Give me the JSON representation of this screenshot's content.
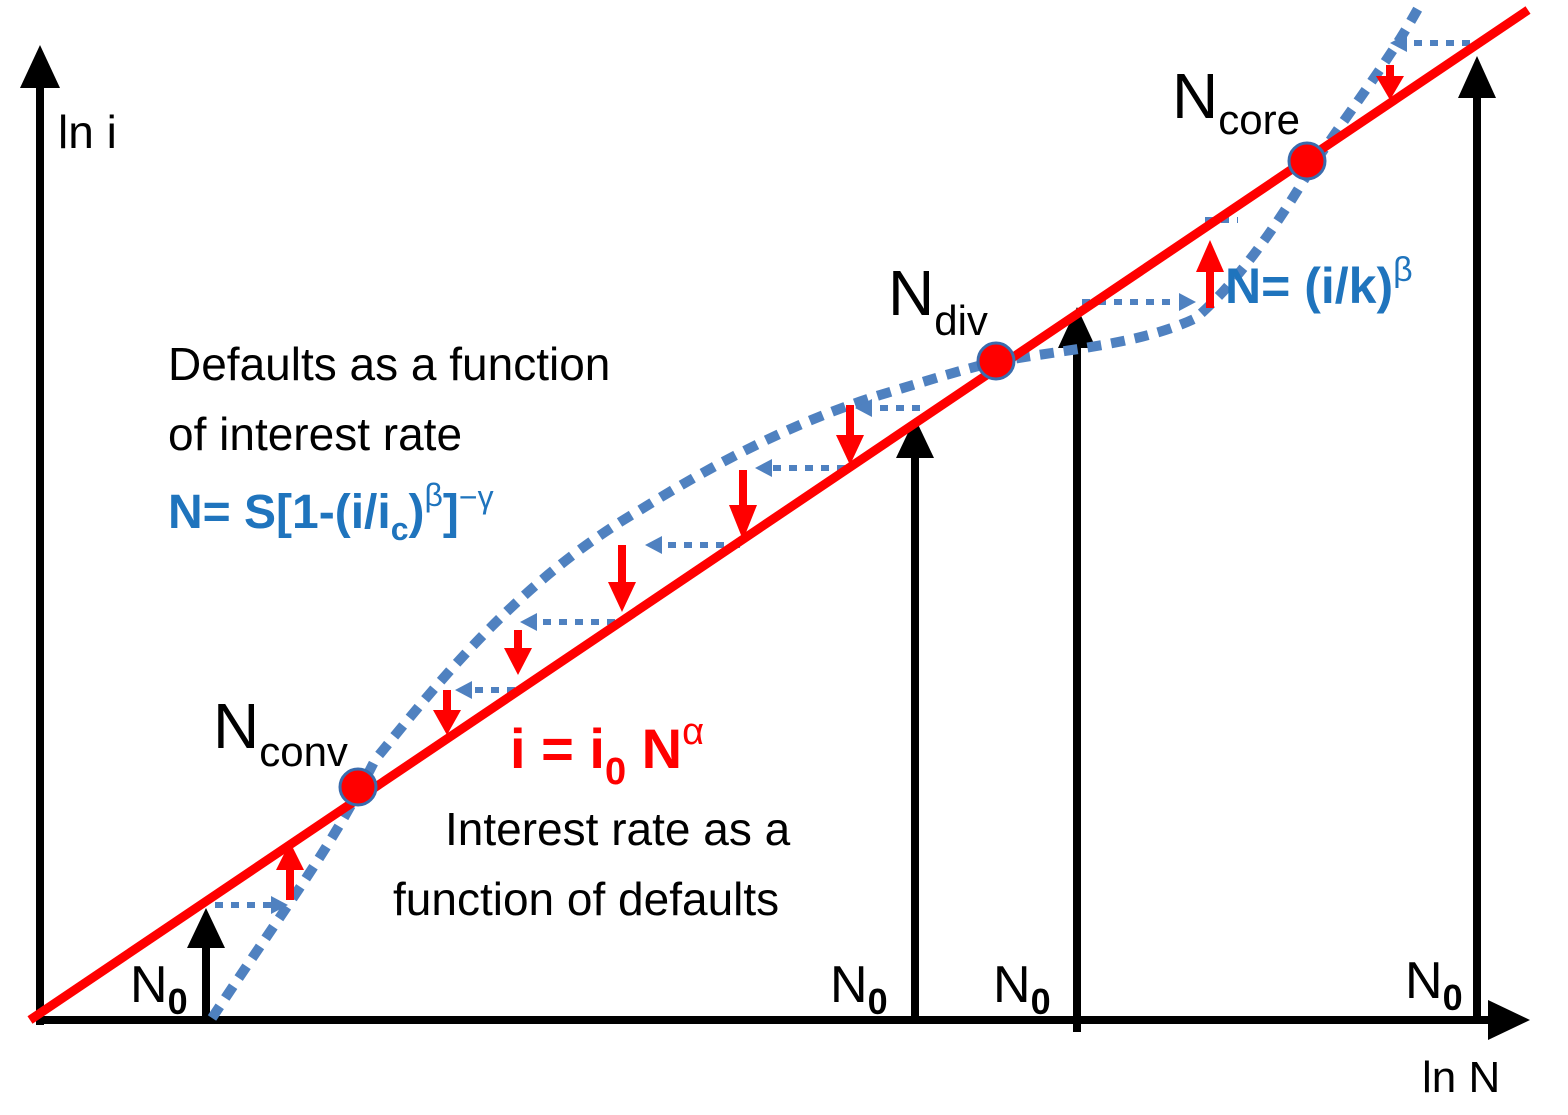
{
  "axes": {
    "y_label": "ln i",
    "x_label": "ln N"
  },
  "labels": {
    "n_core": {
      "base": "N",
      "sub": "core"
    },
    "n_div": {
      "base": "N",
      "sub": "div"
    },
    "n_conv": {
      "base": "N",
      "sub": "conv"
    },
    "n0_base": "N",
    "n0_sub": "0"
  },
  "defaults_curve": {
    "line1": "Defaults as a function",
    "line2": "of interest rate",
    "formula": {
      "p1": "N= S[1-(i/i",
      "sub": "c",
      "p2": ")",
      "sup1": "β",
      "p3": "]",
      "sup2": "−γ"
    }
  },
  "rate_line": {
    "formula": {
      "p1": "i = i",
      "sub": "0",
      "p2": " N",
      "sup": "α"
    },
    "line1": "Interest rate as a",
    "line2": "function of defaults"
  },
  "power_law": {
    "formula": {
      "p1": "N= (i/k)",
      "sup": "β"
    }
  },
  "colors": {
    "axis": "#000000",
    "rate_line": "#ff0000",
    "defaults_curve": "#4f81c0",
    "equilibrium_point": "#ff0000",
    "text_blue": "#1f74bd"
  }
}
